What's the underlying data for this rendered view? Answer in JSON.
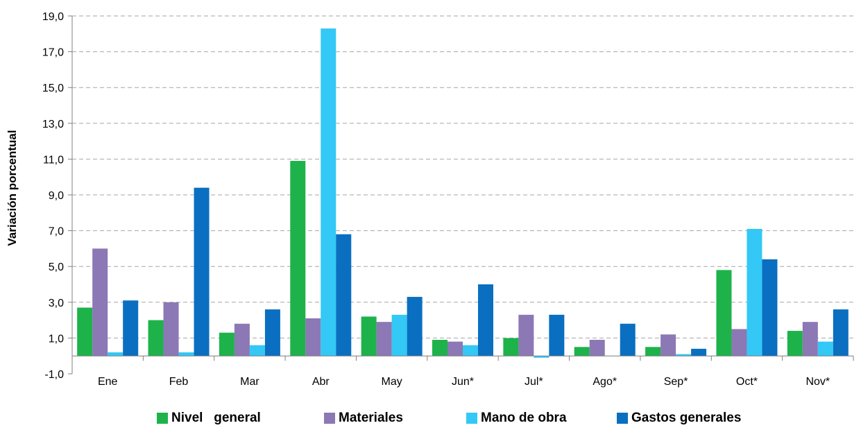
{
  "chart_data": {
    "type": "bar",
    "title": "",
    "xlabel": "",
    "ylabel": "Variación porcentual",
    "ylim": [
      -1,
      19
    ],
    "yticks": [
      "-1,0",
      "1,0",
      "3,0",
      "5,0",
      "7,0",
      "9,0",
      "11,0",
      "13,0",
      "15,0",
      "17,0",
      "19,0"
    ],
    "grid": "horizontal-dashed",
    "legend_position": "bottom",
    "categories": [
      "Ene",
      "Feb",
      "Mar",
      "Abr",
      "May",
      "Jun*",
      "Jul*",
      "Ago*",
      "Sep*",
      "Oct*",
      "Nov*"
    ],
    "series": [
      {
        "name": "Nivel   general",
        "color": "#1db34a",
        "values": [
          2.7,
          2.0,
          1.3,
          10.9,
          2.2,
          0.9,
          1.0,
          0.5,
          0.5,
          4.8,
          1.4
        ]
      },
      {
        "name": "Materiales",
        "color": "#8b78b4",
        "values": [
          6.0,
          3.0,
          1.8,
          2.1,
          1.9,
          0.8,
          2.3,
          0.9,
          1.2,
          1.5,
          1.9
        ]
      },
      {
        "name": "Mano de obra",
        "color": "#33c8f5",
        "values": [
          0.2,
          0.2,
          0.6,
          18.3,
          2.3,
          0.6,
          -0.1,
          0.0,
          0.1,
          7.1,
          0.8
        ]
      },
      {
        "name": "Gastos generales",
        "color": "#0a6fc0",
        "values": [
          3.1,
          9.4,
          2.6,
          6.8,
          3.3,
          4.0,
          2.3,
          1.8,
          0.4,
          5.4,
          2.6
        ]
      }
    ]
  }
}
